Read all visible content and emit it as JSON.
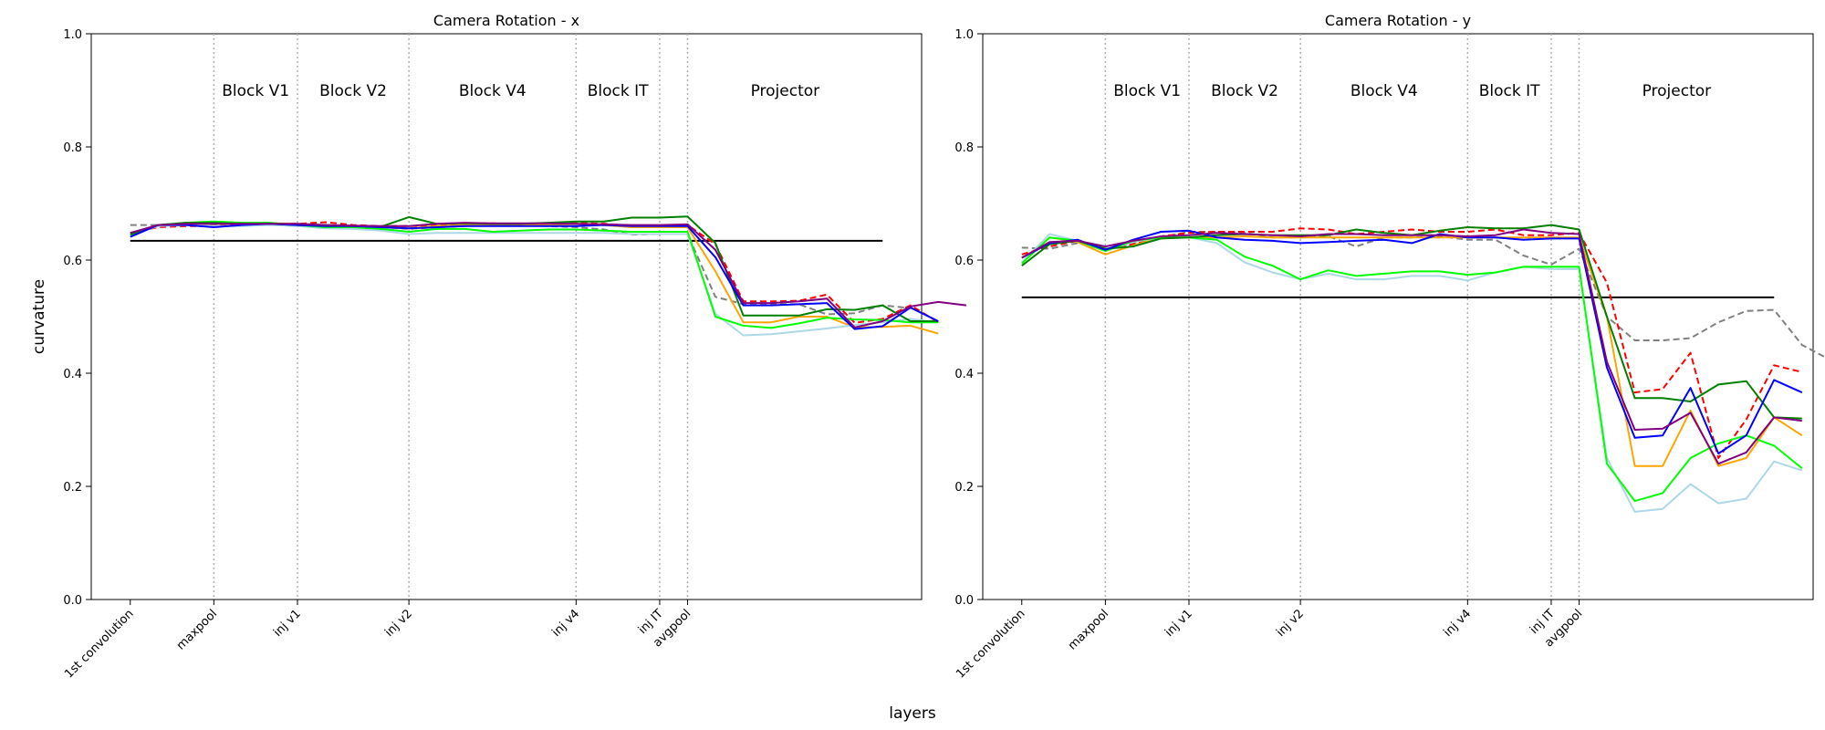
{
  "figure": {
    "xlabel": "layers",
    "shared_ylabel": "curvature"
  },
  "chart_data": [
    {
      "type": "line",
      "title": "Camera Rotation - x",
      "ylabel": "curvature",
      "ylim": [
        0,
        1.0
      ],
      "yticks": [
        "0.0",
        "0.2",
        "0.4",
        "0.6",
        "0.8",
        "1.0"
      ],
      "xlim": [
        -1.4,
        28.4
      ],
      "xtick_labels": [
        {
          "label": "1st convolution",
          "x": 0
        },
        {
          "label": "maxpool",
          "x": 3
        },
        {
          "label": "inj v1",
          "x": 6
        },
        {
          "label": "inj v2",
          "x": 10
        },
        {
          "label": "inj v4",
          "x": 16
        },
        {
          "label": "inj IT",
          "x": 19
        },
        {
          "label": "avgpool",
          "x": 20
        }
      ],
      "region_separators": [
        3,
        6,
        10,
        16,
        19,
        20
      ],
      "region_labels": [
        {
          "label": "Block V1",
          "x": 4.5
        },
        {
          "label": "Block V2",
          "x": 8
        },
        {
          "label": "Block V4",
          "x": 13
        },
        {
          "label": "Block IT",
          "x": 17.5
        },
        {
          "label": "Projector",
          "x": 23.5
        }
      ],
      "reference_line": {
        "y": 0.634,
        "x": [
          0,
          27
        ],
        "color": "#000000"
      },
      "grid": false,
      "series": [
        {
          "color": "#808080",
          "dashed": true,
          "values": [
            0.662,
            0.662,
            0.664,
            0.662,
            0.664,
            0.665,
            0.664,
            0.662,
            0.66,
            0.658,
            0.655,
            0.658,
            0.66,
            0.662,
            0.662,
            0.66,
            0.658,
            0.654,
            0.645,
            0.646,
            0.646,
            0.535,
            0.522,
            0.522,
            0.522,
            0.504,
            0.506,
            0.52,
            0.515
          ]
        },
        {
          "color": "#ff0000",
          "dashed": true,
          "values": [
            0.648,
            0.658,
            0.66,
            0.66,
            0.662,
            0.665,
            0.664,
            0.667,
            0.662,
            0.66,
            0.66,
            0.662,
            0.665,
            0.665,
            0.663,
            0.664,
            0.666,
            0.664,
            0.661,
            0.661,
            0.662,
            0.628,
            0.527,
            0.527,
            0.528,
            0.539,
            0.489,
            0.496,
            0.52,
            0.49
          ]
        },
        {
          "color": "#ffa500",
          "dashed": false,
          "values": [
            0.645,
            0.662,
            0.664,
            0.664,
            0.664,
            0.665,
            0.664,
            0.662,
            0.66,
            0.658,
            0.656,
            0.66,
            0.662,
            0.662,
            0.662,
            0.662,
            0.664,
            0.662,
            0.658,
            0.658,
            0.658,
            0.58,
            0.49,
            0.49,
            0.5,
            0.5,
            0.481,
            0.482,
            0.484,
            0.47
          ]
        },
        {
          "color": "#add8e6",
          "dashed": false,
          "values": [
            0.645,
            0.66,
            0.662,
            0.66,
            0.66,
            0.662,
            0.66,
            0.656,
            0.655,
            0.652,
            0.646,
            0.648,
            0.648,
            0.648,
            0.648,
            0.648,
            0.648,
            0.648,
            0.646,
            0.646,
            0.646,
            0.505,
            0.467,
            0.469,
            0.474,
            0.479,
            0.485,
            0.49,
            0.496,
            0.49
          ]
        },
        {
          "color": "#00ff00",
          "dashed": false,
          "values": [
            0.645,
            0.662,
            0.666,
            0.668,
            0.666,
            0.666,
            0.662,
            0.658,
            0.658,
            0.655,
            0.65,
            0.655,
            0.655,
            0.65,
            0.652,
            0.654,
            0.654,
            0.652,
            0.65,
            0.65,
            0.65,
            0.5,
            0.484,
            0.48,
            0.488,
            0.498,
            0.495,
            0.494,
            0.49,
            0.49
          ]
        },
        {
          "color": "#008000",
          "dashed": false,
          "values": [
            0.645,
            0.662,
            0.666,
            0.666,
            0.664,
            0.664,
            0.662,
            0.662,
            0.66,
            0.659,
            0.676,
            0.664,
            0.665,
            0.664,
            0.664,
            0.666,
            0.668,
            0.668,
            0.675,
            0.675,
            0.677,
            0.63,
            0.502,
            0.502,
            0.502,
            0.513,
            0.512,
            0.52,
            0.492,
            0.492
          ]
        },
        {
          "color": "#0000ff",
          "dashed": false,
          "values": [
            0.641,
            0.662,
            0.662,
            0.658,
            0.662,
            0.664,
            0.662,
            0.66,
            0.66,
            0.658,
            0.656,
            0.658,
            0.66,
            0.66,
            0.66,
            0.66,
            0.66,
            0.662,
            0.66,
            0.66,
            0.66,
            0.605,
            0.52,
            0.52,
            0.522,
            0.524,
            0.478,
            0.483,
            0.516,
            0.492
          ]
        },
        {
          "color": "#800080",
          "dashed": false,
          "values": [
            0.648,
            0.662,
            0.664,
            0.664,
            0.664,
            0.664,
            0.664,
            0.662,
            0.661,
            0.66,
            0.66,
            0.664,
            0.666,
            0.665,
            0.665,
            0.665,
            0.664,
            0.663,
            0.662,
            0.662,
            0.663,
            0.618,
            0.524,
            0.524,
            0.527,
            0.532,
            0.481,
            0.492,
            0.518,
            0.526,
            0.52
          ]
        }
      ]
    },
    {
      "type": "line",
      "title": "Camera Rotation - y",
      "ylabel": "",
      "ylim": [
        0,
        1.0
      ],
      "yticks": [
        "0.0",
        "0.2",
        "0.4",
        "0.6",
        "0.8",
        "1.0"
      ],
      "xlim": [
        -1.4,
        28.4
      ],
      "xtick_labels": [
        {
          "label": "1st convolution",
          "x": 0
        },
        {
          "label": "maxpool",
          "x": 3
        },
        {
          "label": "inj v1",
          "x": 6
        },
        {
          "label": "inj v2",
          "x": 10
        },
        {
          "label": "inj v4",
          "x": 16
        },
        {
          "label": "inj IT",
          "x": 19
        },
        {
          "label": "avgpool",
          "x": 20
        }
      ],
      "region_separators": [
        3,
        6,
        10,
        16,
        19,
        20
      ],
      "region_labels": [
        {
          "label": "Block V1",
          "x": 4.5
        },
        {
          "label": "Block V2",
          "x": 8
        },
        {
          "label": "Block V4",
          "x": 13
        },
        {
          "label": "Block IT",
          "x": 17.5
        },
        {
          "label": "Projector",
          "x": 23.5
        }
      ],
      "reference_line": {
        "y": 0.534,
        "x": [
          0,
          27
        ],
        "color": "#000000"
      },
      "grid": false,
      "series": [
        {
          "color": "#808080",
          "dashed": true,
          "values": [
            0.622,
            0.62,
            0.63,
            0.618,
            0.63,
            0.64,
            0.65,
            0.65,
            0.648,
            0.64,
            0.64,
            0.642,
            0.624,
            0.64,
            0.64,
            0.642,
            0.636,
            0.636,
            0.608,
            0.592,
            0.62,
            0.5,
            0.458,
            0.458,
            0.462,
            0.49,
            0.51,
            0.512,
            0.45,
            0.424
          ]
        },
        {
          "color": "#ff0000",
          "dashed": true,
          "values": [
            0.61,
            0.624,
            0.634,
            0.62,
            0.628,
            0.642,
            0.648,
            0.65,
            0.65,
            0.65,
            0.656,
            0.654,
            0.646,
            0.65,
            0.654,
            0.65,
            0.65,
            0.654,
            0.644,
            0.644,
            0.648,
            0.56,
            0.366,
            0.372,
            0.436,
            0.25,
            0.318,
            0.414,
            0.402
          ]
        },
        {
          "color": "#ffa500",
          "dashed": false,
          "values": [
            0.596,
            0.64,
            0.632,
            0.61,
            0.626,
            0.64,
            0.64,
            0.64,
            0.642,
            0.64,
            0.64,
            0.64,
            0.64,
            0.64,
            0.64,
            0.64,
            0.64,
            0.64,
            0.64,
            0.64,
            0.64,
            0.5,
            0.236,
            0.236,
            0.334,
            0.236,
            0.25,
            0.322,
            0.29
          ]
        },
        {
          "color": "#add8e6",
          "dashed": false,
          "values": [
            0.596,
            0.646,
            0.634,
            0.616,
            0.632,
            0.64,
            0.64,
            0.63,
            0.596,
            0.578,
            0.566,
            0.576,
            0.566,
            0.566,
            0.572,
            0.572,
            0.564,
            0.578,
            0.588,
            0.584,
            0.584,
            0.25,
            0.155,
            0.16,
            0.204,
            0.17,
            0.178,
            0.244,
            0.228
          ]
        },
        {
          "color": "#00ff00",
          "dashed": false,
          "values": [
            0.594,
            0.64,
            0.634,
            0.616,
            0.634,
            0.64,
            0.64,
            0.636,
            0.606,
            0.59,
            0.566,
            0.582,
            0.572,
            0.576,
            0.58,
            0.58,
            0.574,
            0.578,
            0.588,
            0.588,
            0.588,
            0.24,
            0.174,
            0.188,
            0.25,
            0.276,
            0.29,
            0.272,
            0.232
          ]
        },
        {
          "color": "#008000",
          "dashed": false,
          "values": [
            0.59,
            0.628,
            0.634,
            0.62,
            0.624,
            0.638,
            0.64,
            0.644,
            0.646,
            0.644,
            0.644,
            0.644,
            0.654,
            0.648,
            0.644,
            0.652,
            0.658,
            0.656,
            0.656,
            0.662,
            0.654,
            0.5,
            0.356,
            0.356,
            0.35,
            0.38,
            0.386,
            0.322,
            0.32
          ]
        },
        {
          "color": "#0000ff",
          "dashed": false,
          "values": [
            0.604,
            0.63,
            0.636,
            0.618,
            0.636,
            0.65,
            0.652,
            0.64,
            0.636,
            0.634,
            0.63,
            0.632,
            0.634,
            0.636,
            0.63,
            0.646,
            0.64,
            0.64,
            0.636,
            0.638,
            0.638,
            0.41,
            0.286,
            0.29,
            0.374,
            0.258,
            0.29,
            0.388,
            0.366
          ]
        },
        {
          "color": "#800080",
          "dashed": false,
          "values": [
            0.604,
            0.632,
            0.634,
            0.624,
            0.634,
            0.642,
            0.644,
            0.648,
            0.646,
            0.644,
            0.642,
            0.646,
            0.646,
            0.644,
            0.644,
            0.644,
            0.642,
            0.644,
            0.654,
            0.648,
            0.646,
            0.42,
            0.3,
            0.302,
            0.33,
            0.24,
            0.26,
            0.322,
            0.316
          ]
        }
      ]
    }
  ]
}
